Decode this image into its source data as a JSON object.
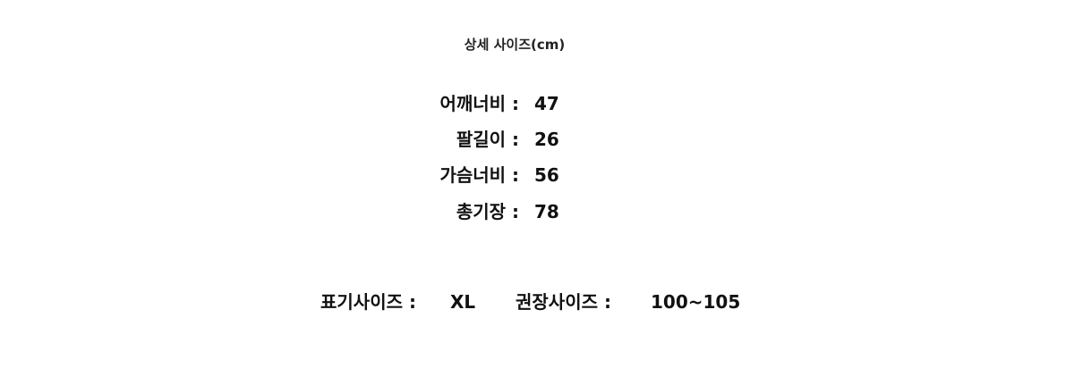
{
  "title": "상세 사이즈(cm)",
  "measurements": [
    {
      "label": "어깨너비 :",
      "value": "47"
    },
    {
      "label": "팔길이 :",
      "value": "26"
    },
    {
      "label": "가슴너비 :",
      "value": "56"
    },
    {
      "label": "총기장 :",
      "value": "78"
    }
  ],
  "labeled_size": {
    "label": "표기사이즈 :",
    "value": "XL"
  },
  "recommended_size": {
    "label": "권장사이즈 :",
    "value": "100~105"
  }
}
